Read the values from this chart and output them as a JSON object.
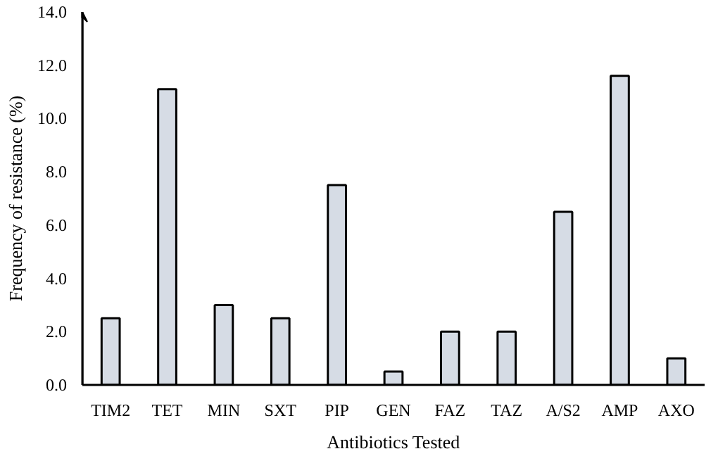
{
  "chart_data": {
    "type": "bar",
    "xlabel": "Antibiotics Tested",
    "ylabel": "Frequency of resistance (%)",
    "categories": [
      "TIM2",
      "TET",
      "MIN",
      "SXT",
      "PIP",
      "GEN",
      "FAZ",
      "TAZ",
      "A/S2",
      "AMP",
      "AXO"
    ],
    "values": [
      2.5,
      11.1,
      3.0,
      2.5,
      7.5,
      0.5,
      2.0,
      2.0,
      6.5,
      11.6,
      1.0
    ],
    "color": "#d6dce5",
    "ylim": [
      0,
      14
    ],
    "yticks": [
      {
        "value": 0,
        "label": "0.0"
      },
      {
        "value": 2,
        "label": "2.0"
      },
      {
        "value": 4,
        "label": "4.0"
      },
      {
        "value": 6,
        "label": "6.0"
      },
      {
        "value": 8,
        "label": "8.0"
      },
      {
        "value": 10,
        "label": "10.0"
      },
      {
        "value": 12,
        "label": "12.0"
      },
      {
        "value": 14,
        "label": "14.0"
      }
    ],
    "grid": false
  }
}
